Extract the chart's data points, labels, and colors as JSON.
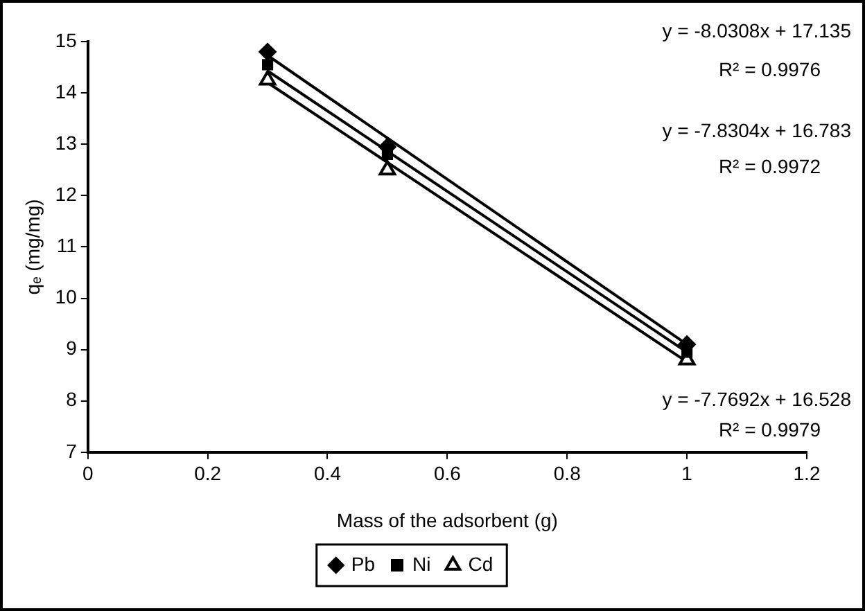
{
  "chart_data": {
    "type": "scatter",
    "xlabel": "Mass of the adsorbent (g)",
    "ylabel": "qₑ (mg/mg)",
    "xlim": [
      0,
      1.2
    ],
    "xticks": [
      0,
      0.2,
      0.4,
      0.6,
      0.8,
      1,
      1.2
    ],
    "ylim": [
      7,
      15
    ],
    "yticks": [
      7,
      8,
      9,
      10,
      11,
      12,
      13,
      14,
      15
    ],
    "grid": false,
    "legend": "bottom",
    "series": [
      {
        "name": "Pb",
        "marker": "diamond",
        "color": "#000000",
        "x": [
          0.3,
          0.5,
          1
        ],
        "values": [
          14.8,
          12.95,
          9.1
        ]
      },
      {
        "name": "Ni",
        "marker": "square",
        "color": "#000000",
        "x": [
          0.3,
          0.5,
          1
        ],
        "values": [
          14.55,
          12.8,
          8.95
        ]
      },
      {
        "name": "Cd",
        "marker": "triangle",
        "color": "#000000",
        "x": [
          0.3,
          0.5,
          1
        ],
        "values": [
          14.25,
          12.5,
          8.8
        ]
      },
      {
        "type": "line",
        "marker": "none",
        "color": "#000000",
        "x": [
          0.3,
          1
        ],
        "values": [
          14.73,
          9.1
        ]
      },
      {
        "type": "line",
        "marker": "none",
        "color": "#000000",
        "x": [
          0.3,
          1
        ],
        "values": [
          14.43,
          8.95
        ]
      },
      {
        "type": "line",
        "marker": "none",
        "color": "#000000",
        "x": [
          0.3,
          1
        ],
        "values": [
          14.2,
          8.76
        ]
      }
    ],
    "annotations": [
      "y = -8.0308x + 17.135",
      "R² = 0.9976",
      "y = -7.8304x + 16.783",
      "R² = 0.9972",
      "y = -7.7692x + 16.528",
      "R² = 0.9979"
    ]
  }
}
